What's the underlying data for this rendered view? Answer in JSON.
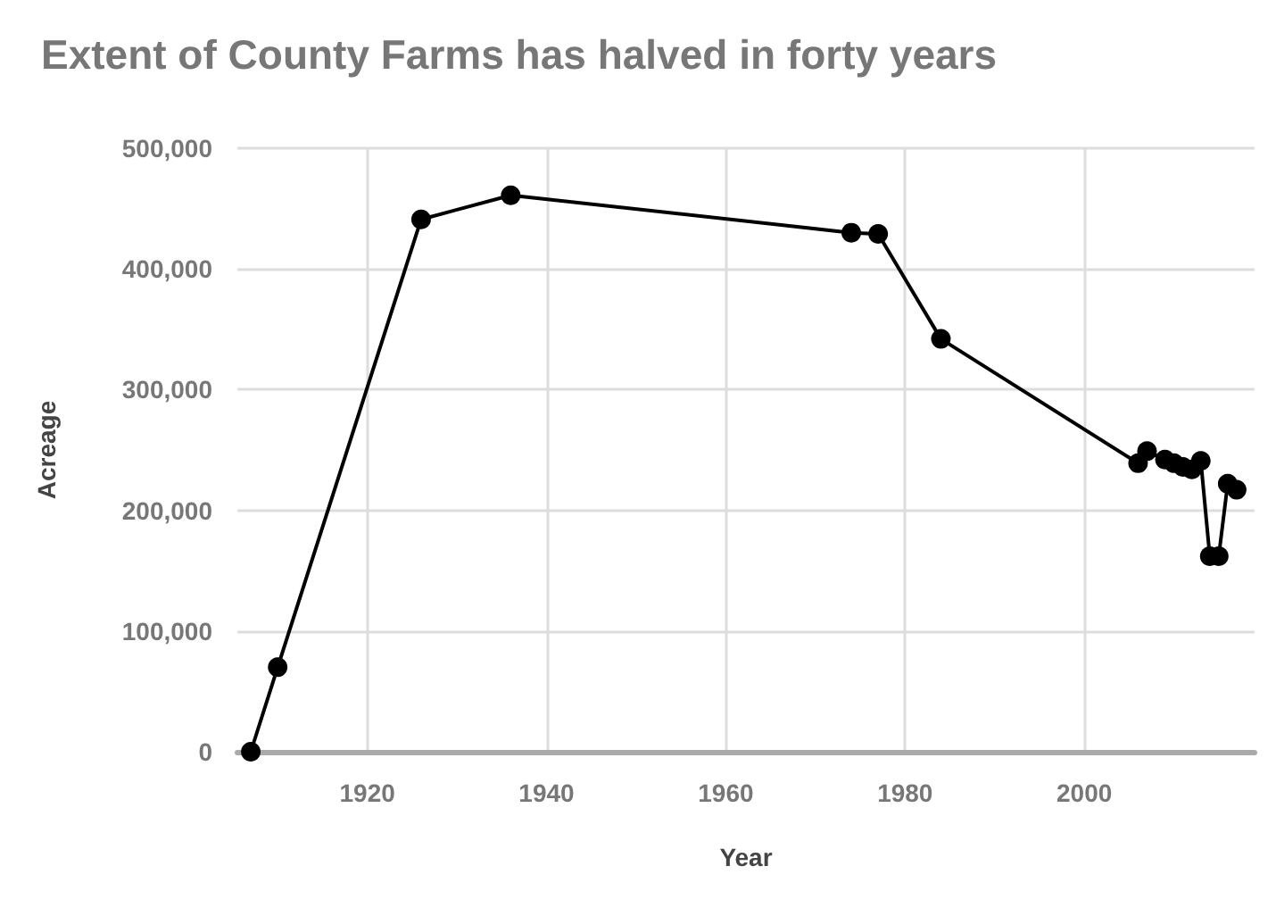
{
  "chart_data": {
    "type": "line",
    "title": "Extent of County Farms has halved in forty years",
    "xlabel": "Year",
    "ylabel": "Acreage",
    "x": [
      1907,
      1910,
      1926,
      1936,
      1974,
      1977,
      1984,
      2006,
      2007,
      2009,
      2010,
      2011,
      2012,
      2013,
      2014,
      2015,
      2016,
      2017
    ],
    "series": [
      {
        "color": "#000000",
        "values": [
          0,
          70000,
          441000,
          461000,
          430000,
          429000,
          342000,
          239000,
          249000,
          242000,
          239000,
          236000,
          234000,
          241000,
          162000,
          162000,
          222000,
          217000
        ]
      }
    ],
    "xlim": [
      1905.5,
      2019
    ],
    "xticks": [
      1920,
      1940,
      1960,
      1980,
      2000
    ],
    "ylim": [
      0,
      500000
    ],
    "yticks": [
      0,
      {
        "value": 100000,
        "label": "100,000"
      },
      {
        "value": 200000,
        "label": "200,000"
      },
      {
        "value": 300000,
        "label": "300,000"
      },
      {
        "value": 400000,
        "label": "400,000"
      },
      {
        "value": 500000,
        "label": "500,000"
      }
    ],
    "grid": true,
    "marker": "circle",
    "line_style": "solid"
  }
}
